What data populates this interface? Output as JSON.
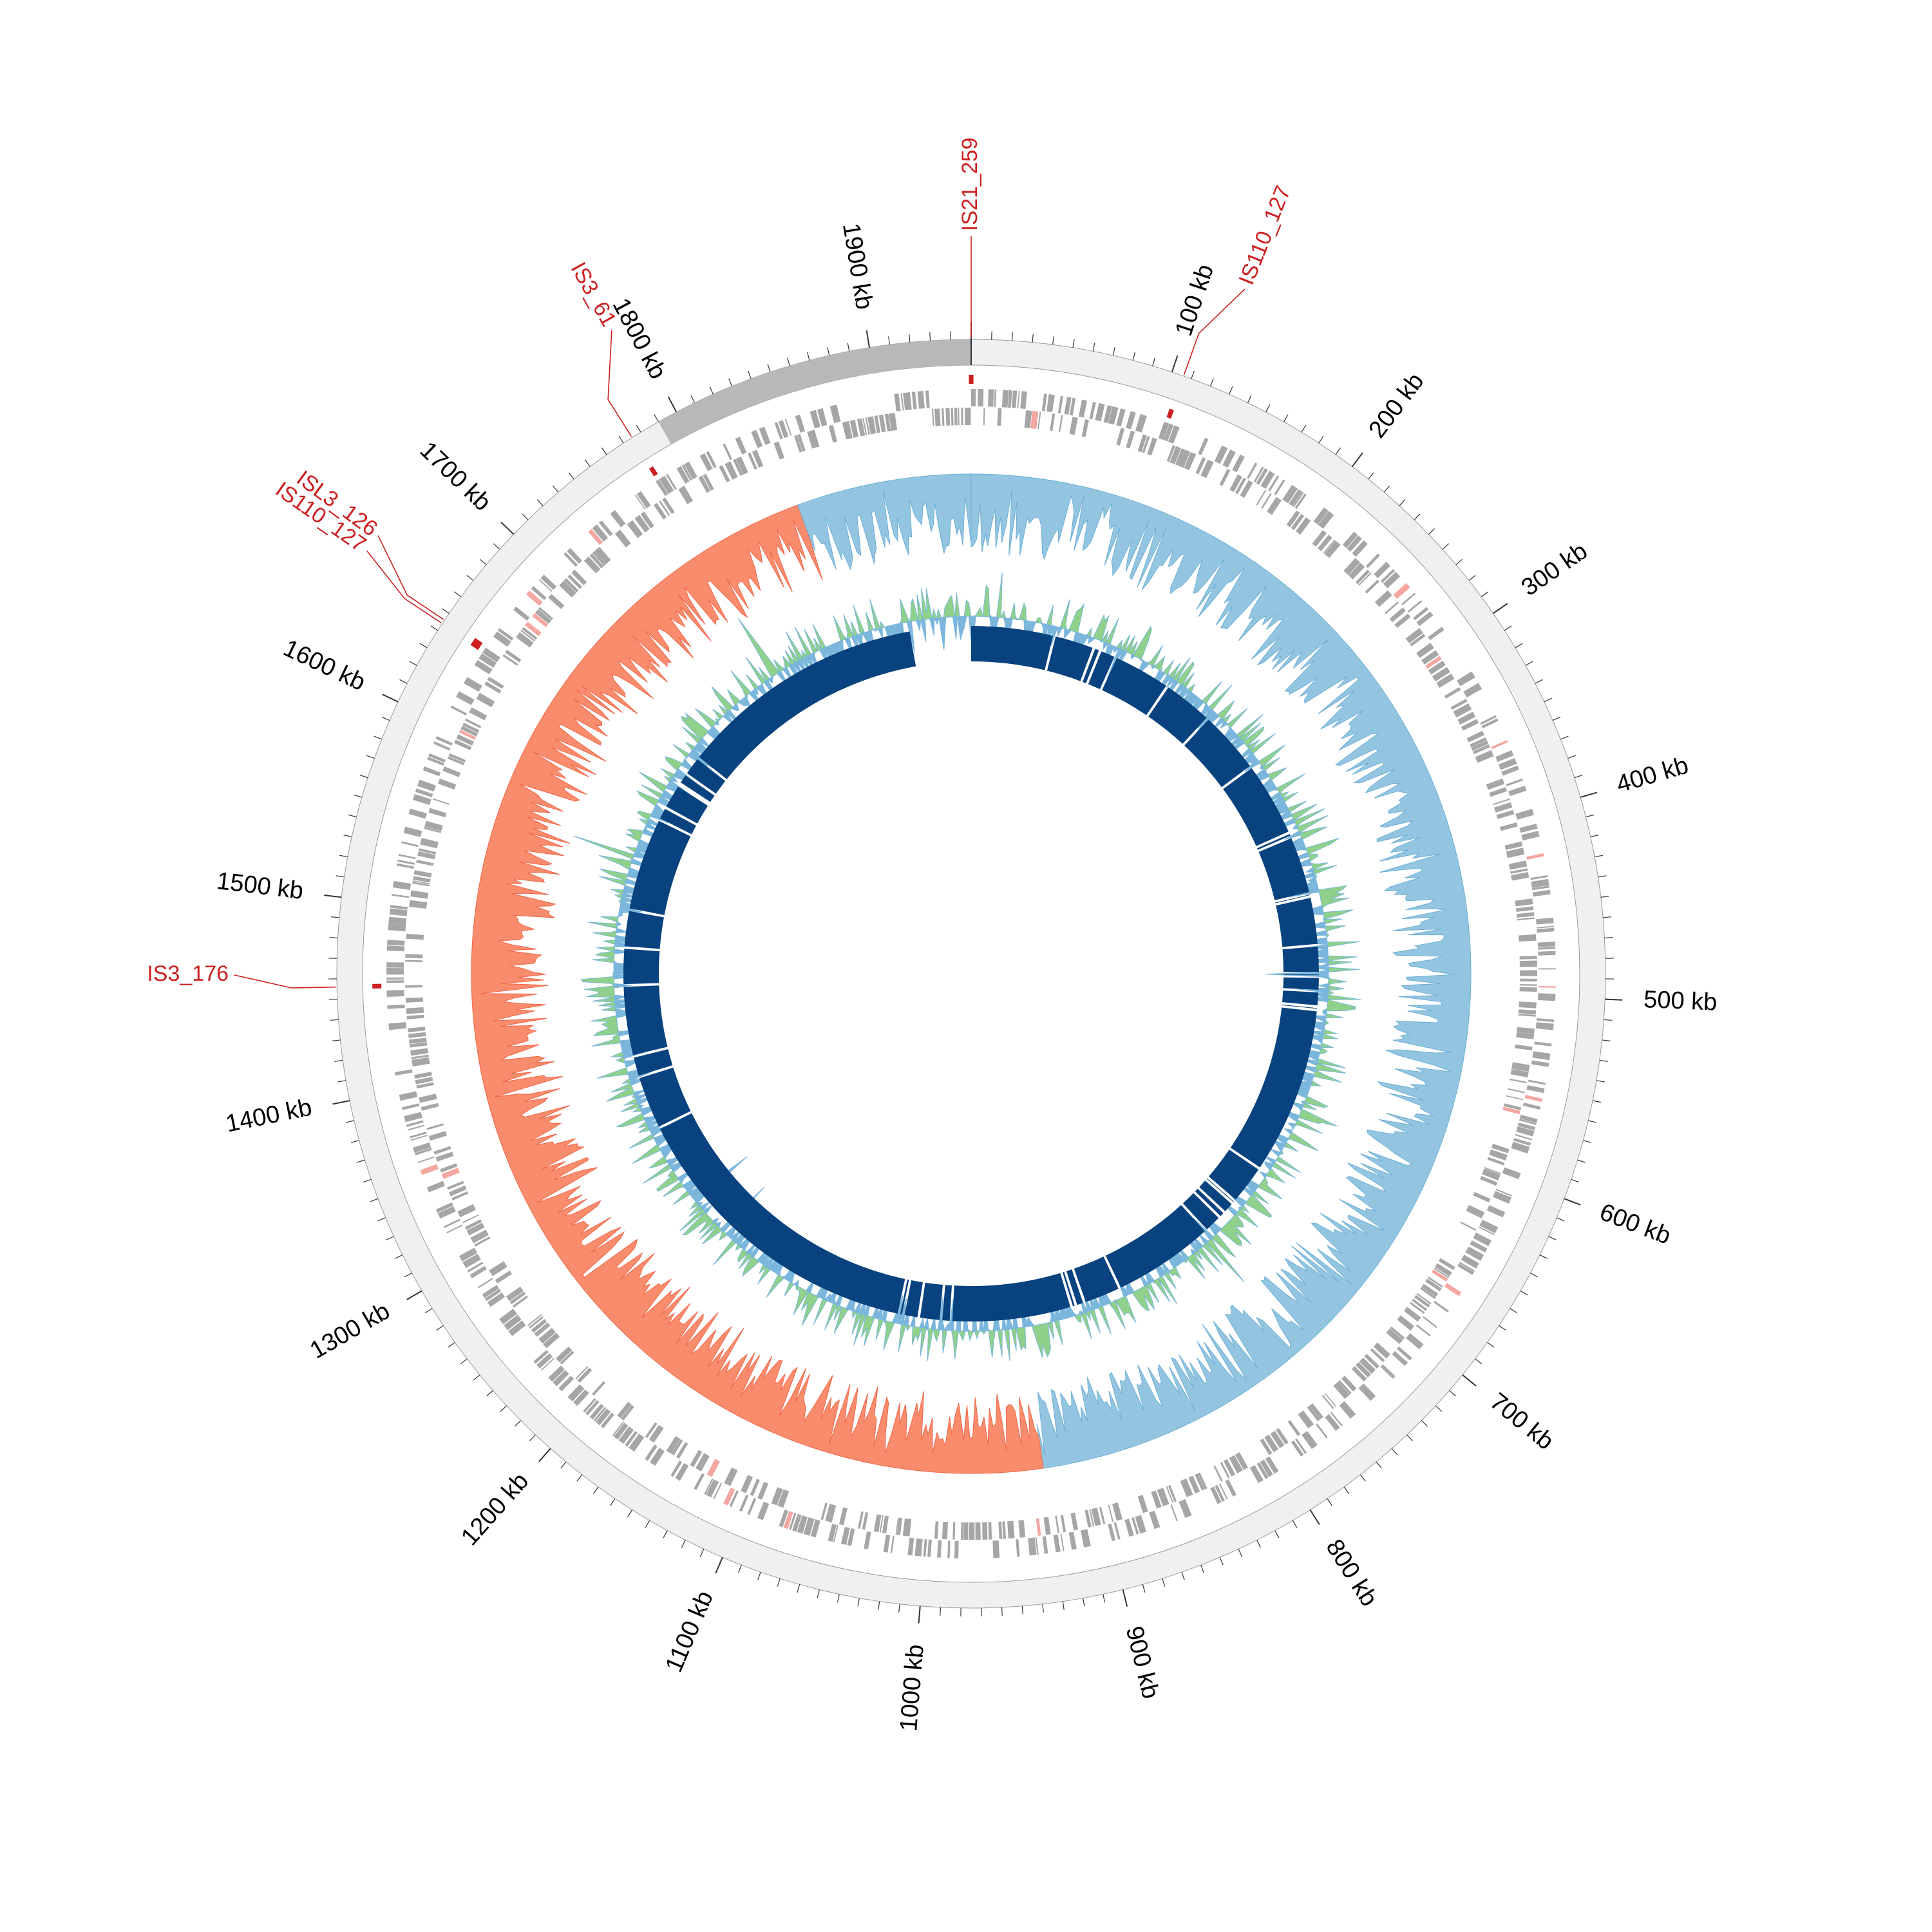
{
  "title": "Circular genome map",
  "genome_length_kb": 1950,
  "colors": {
    "ideogram_fill": "#f0f0f0",
    "ideogram_highlight": "#b8b8b8",
    "gene": "#a6a6a6",
    "gene_highlight": "#f4a6a0",
    "is_element": "#cc1f1f",
    "gc_skew_positive": "#94c5e0",
    "gc_skew_negative": "#f98c6c",
    "gc_skew_stroke_positive": "#6aaed6",
    "gc_skew_stroke_negative": "#ef6548",
    "gc_content_above": "#8fd18a",
    "gc_content_below": "#7bb6dc",
    "blocks": "#08427f",
    "text": "#000000"
  },
  "scale": {
    "labels": [
      "100 kb",
      "200 kb",
      "300 kb",
      "400 kb",
      "500 kb",
      "600 kb",
      "700 kb",
      "800 kb",
      "900 kb",
      "1000 kb",
      "1100 kb",
      "1200 kb",
      "1300 kb",
      "1400 kb",
      "1500 kb",
      "1600 kb",
      "1700 kb",
      "1800 kb",
      "1900 kb"
    ],
    "label_positions_kb": [
      100,
      200,
      300,
      400,
      500,
      600,
      700,
      800,
      900,
      1000,
      1100,
      1200,
      1300,
      1400,
      1500,
      1600,
      1700,
      1800,
      1900
    ]
  },
  "ideogram_highlight_kb": [
    1790,
    1950
  ],
  "is_elements": [
    {
      "label": "IS21_259",
      "position_kb": 0
    },
    {
      "label": "IS110_127",
      "position_kb": 106
    },
    {
      "label": "IS3_61",
      "position_kb": 1775
    },
    {
      "label": "ISL3_126",
      "position_kb": 1646
    },
    {
      "label": "IS110_127",
      "position_kb": 1644
    },
    {
      "label": "IS3_176",
      "position_kb": 1456
    }
  ],
  "gc_skew": {
    "positive_range_kb": [
      0,
      930
    ],
    "negative_range_kb": [
      930,
      1840
    ],
    "positive_range2_kb": [
      1840,
      1950
    ]
  },
  "block_gaps_kb": [
    1896,
    75,
    112,
    118,
    133,
    186,
    232,
    290,
    358,
    362,
    415,
    418,
    462,
    487,
    490,
    503,
    517,
    520,
    672,
    708,
    711,
    722,
    728,
    745,
    838,
    872,
    880,
    884,
    993,
    1002,
    1022,
    1036,
    1040,
    1320,
    1369,
    1388,
    1452,
    1486,
    1520,
    1605,
    1617,
    1640,
    1642,
    1652,
    1670
  ]
}
